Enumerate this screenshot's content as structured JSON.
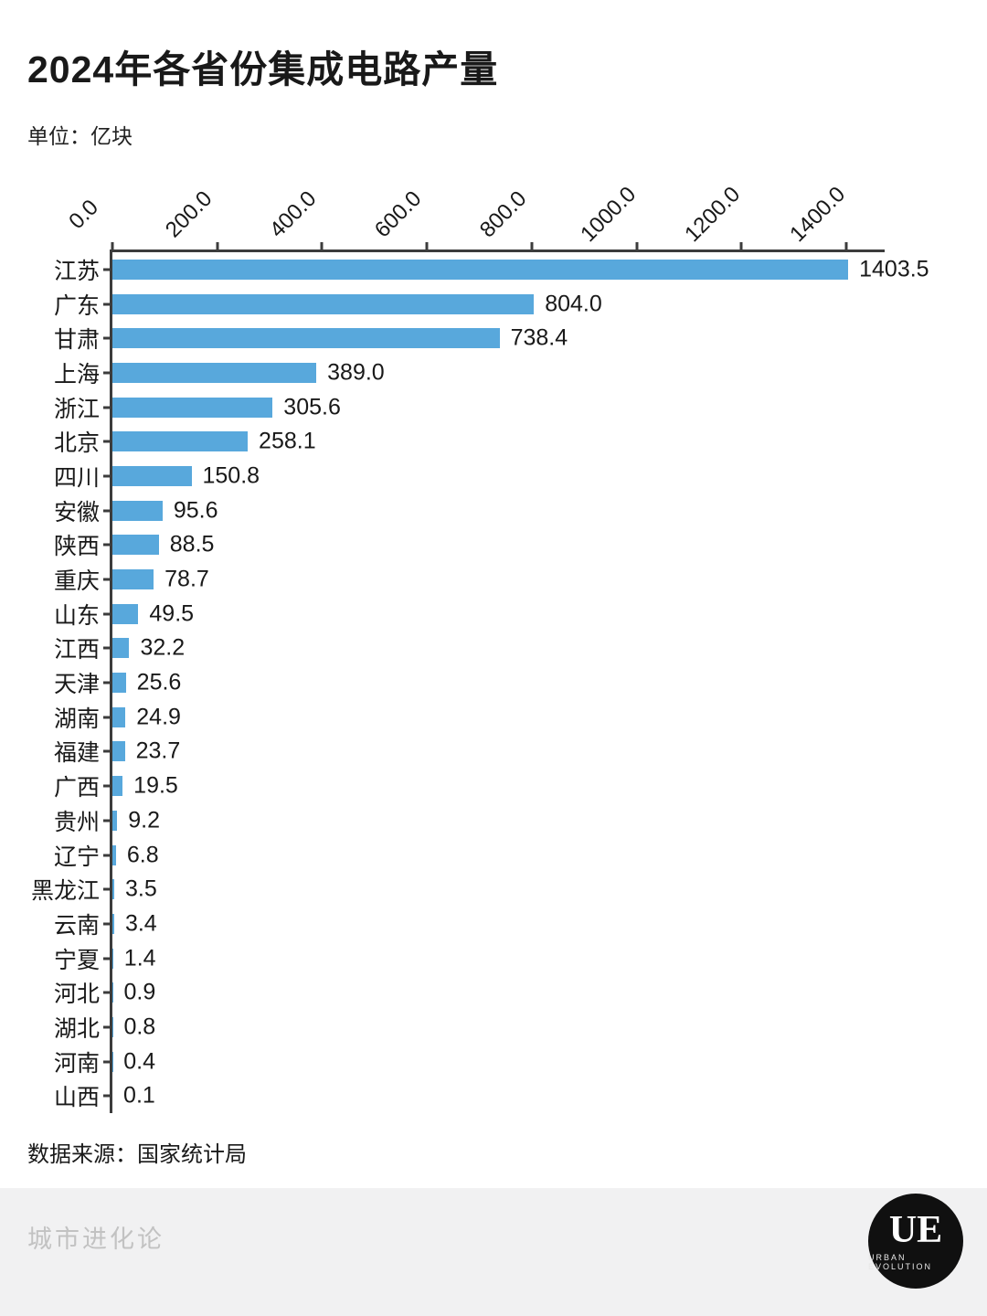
{
  "title": "2024年各省份集成电路产量",
  "unit_label": "单位：亿块",
  "source_label": "数据来源：国家统计局",
  "watermark": "城市进化论",
  "logo": {
    "text": "UE",
    "subtext": "URBAN EVOLUTION"
  },
  "colors": {
    "bar": "#58a8dc",
    "axis": "#3c3c3c",
    "text": "#191919",
    "footer_bg": "#f1f1f2",
    "watermark": "#c2c2c2"
  },
  "chart_data": {
    "type": "bar",
    "orientation": "horizontal",
    "title": "2024年各省份集成电路产量",
    "unit": "亿块",
    "source": "国家统计局",
    "categories": [
      "江苏",
      "广东",
      "甘肃",
      "上海",
      "浙江",
      "北京",
      "四川",
      "安徽",
      "陕西",
      "重庆",
      "山东",
      "江西",
      "天津",
      "湖南",
      "福建",
      "广西",
      "贵州",
      "辽宁",
      "黑龙江",
      "云南",
      "宁夏",
      "河北",
      "湖北",
      "河南",
      "山西"
    ],
    "values": [
      1403.5,
      804.0,
      738.4,
      389.0,
      305.6,
      258.1,
      150.8,
      95.6,
      88.5,
      78.7,
      49.5,
      32.2,
      25.6,
      24.9,
      23.7,
      19.5,
      9.2,
      6.8,
      3.5,
      3.4,
      1.4,
      0.9,
      0.8,
      0.4,
      0.1
    ],
    "x_ticks": [
      0,
      200,
      400,
      600,
      800,
      1000,
      1200,
      1400
    ],
    "x_tick_labels": [
      "0.0",
      "200.0",
      "400.0",
      "600.0",
      "800.0",
      "1000.0",
      "1200.0",
      "1400.0"
    ],
    "xlim": [
      0,
      1473
    ],
    "grid": false,
    "legend": false
  }
}
